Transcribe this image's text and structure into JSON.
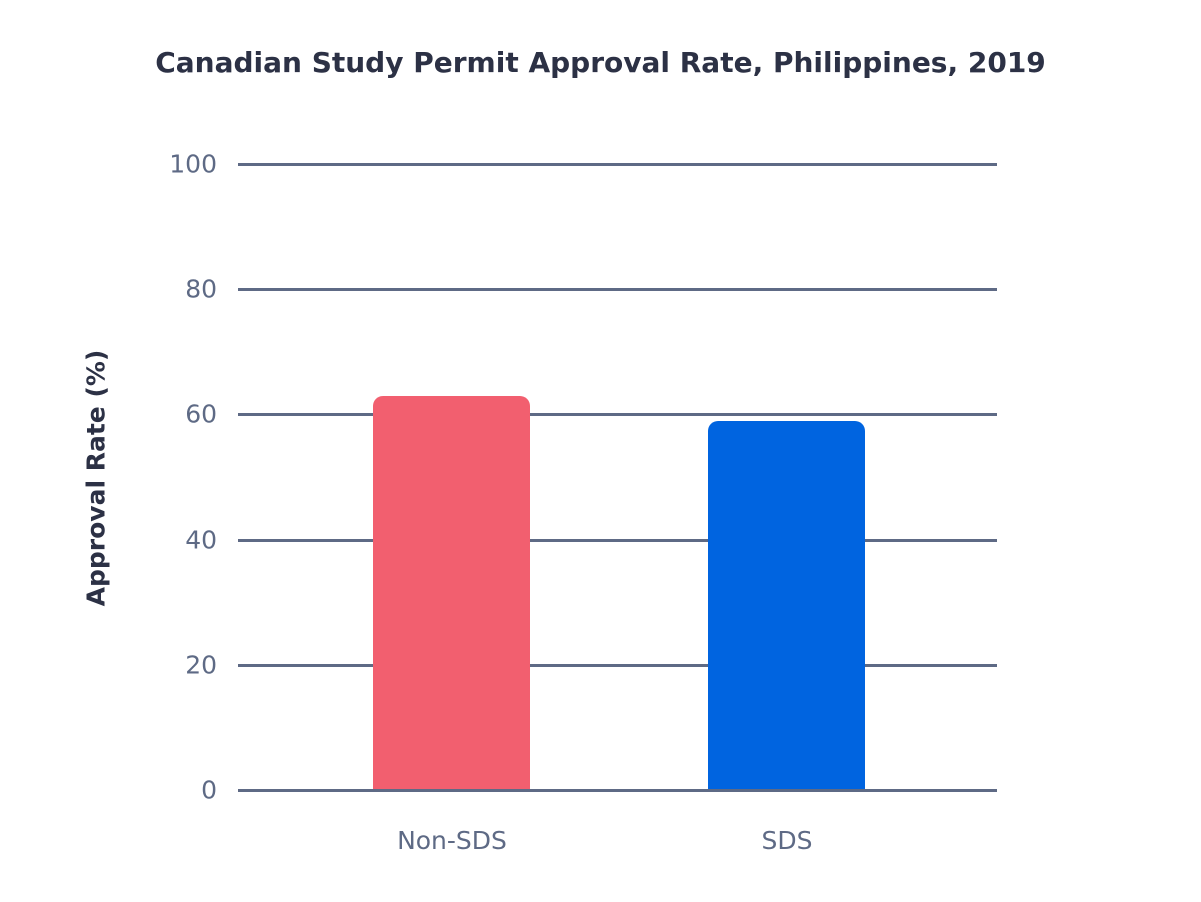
{
  "chart_data": {
    "type": "bar",
    "title": "Canadian Study Permit Approval Rate, Philippines, 2019",
    "xlabel": "",
    "ylabel": "Approval Rate (%)",
    "categories": [
      "Non-SDS",
      "SDS"
    ],
    "values": [
      63,
      59
    ],
    "colors": [
      "#f25f6f",
      "#0064e0"
    ],
    "ylim": [
      0,
      100
    ],
    "yticks": [
      "0",
      "20",
      "40",
      "60",
      "80",
      "100"
    ],
    "grid": true,
    "legend": null
  }
}
